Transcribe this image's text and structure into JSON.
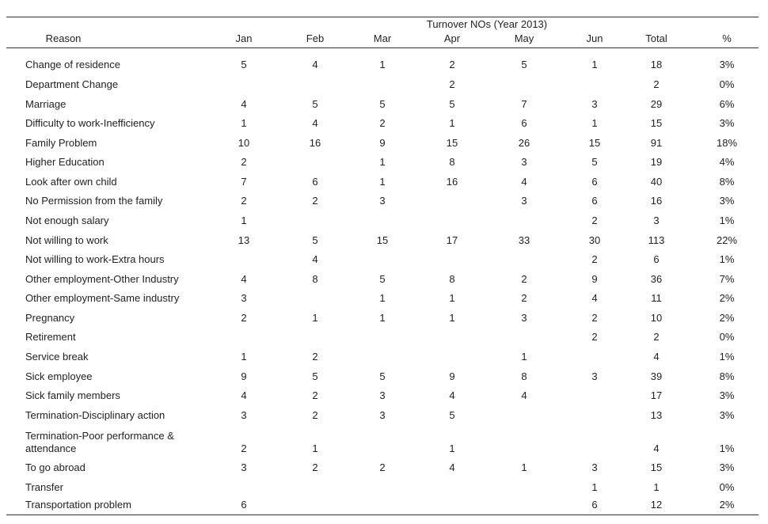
{
  "table": {
    "group_title": "Turnover NOs (Year 2013)",
    "columns": [
      "Reason",
      "Jan",
      "Feb",
      "Mar",
      "Apr",
      "May",
      "Jun",
      "Total",
      "%"
    ],
    "rows": [
      [
        "Change of residence",
        "5",
        "4",
        "1",
        "2",
        "5",
        "1",
        "18",
        "3%"
      ],
      [
        "Department Change",
        null,
        null,
        null,
        "2",
        null,
        null,
        "2",
        "0%"
      ],
      [
        "Marriage",
        "4",
        "5",
        "5",
        "5",
        "7",
        "3",
        "29",
        "6%"
      ],
      [
        "Difficulty to work-Inefficiency",
        "1",
        "4",
        "2",
        "1",
        "6",
        "1",
        "15",
        "3%"
      ],
      [
        "Family Problem",
        "10",
        "16",
        "9",
        "15",
        "26",
        "15",
        "91",
        "18%"
      ],
      [
        "Higher Education",
        "2",
        null,
        "1",
        "8",
        "3",
        "5",
        "19",
        "4%"
      ],
      [
        "Look after own child",
        "7",
        "6",
        "1",
        "16",
        "4",
        "6",
        "40",
        "8%"
      ],
      [
        "No Permission from the family",
        "2",
        "2",
        "3",
        null,
        "3",
        "6",
        "16",
        "3%"
      ],
      [
        "Not enough salary",
        "1",
        null,
        null,
        null,
        null,
        "2",
        "3",
        "1%"
      ],
      [
        "Not willing to work",
        "13",
        "5",
        "15",
        "17",
        "33",
        "30",
        "113",
        "22%"
      ],
      [
        "Not willing to work-Extra hours",
        null,
        "4",
        null,
        null,
        null,
        "2",
        "6",
        "1%"
      ],
      [
        "Other employment-Other Industry",
        "4",
        "8",
        "5",
        "8",
        "2",
        "9",
        "36",
        "7%"
      ],
      [
        "Other employment-Same industry",
        "3",
        null,
        "1",
        "1",
        "2",
        "4",
        "11",
        "2%"
      ],
      [
        "Pregnancy",
        "2",
        "1",
        "1",
        "1",
        "3",
        "2",
        "10",
        "2%"
      ],
      [
        "Retirement",
        null,
        null,
        null,
        null,
        null,
        "2",
        "2",
        "0%"
      ],
      [
        "Service break",
        "1",
        "2",
        null,
        null,
        "1",
        null,
        "4",
        "1%"
      ],
      [
        "Sick employee",
        "9",
        "5",
        "5",
        "9",
        "8",
        "3",
        "39",
        "8%"
      ],
      [
        "Sick family members",
        "4",
        "2",
        "3",
        "4",
        "4",
        null,
        "17",
        "3%"
      ],
      [
        "Termination-Disciplinary action",
        "3",
        "2",
        "3",
        "5",
        null,
        null,
        "13",
        "3%"
      ],
      [
        "Termination-Poor performance & attendance",
        "2",
        "1",
        null,
        "1",
        null,
        null,
        "4",
        "1%"
      ],
      [
        "To go abroad",
        "3",
        "2",
        "2",
        "4",
        "1",
        "3",
        "15",
        "3%"
      ],
      [
        "Transfer",
        null,
        null,
        null,
        null,
        null,
        "1",
        "1",
        "0%"
      ],
      [
        "Transportation problem",
        "6",
        null,
        null,
        null,
        null,
        "6",
        "12",
        "2%"
      ]
    ]
  }
}
